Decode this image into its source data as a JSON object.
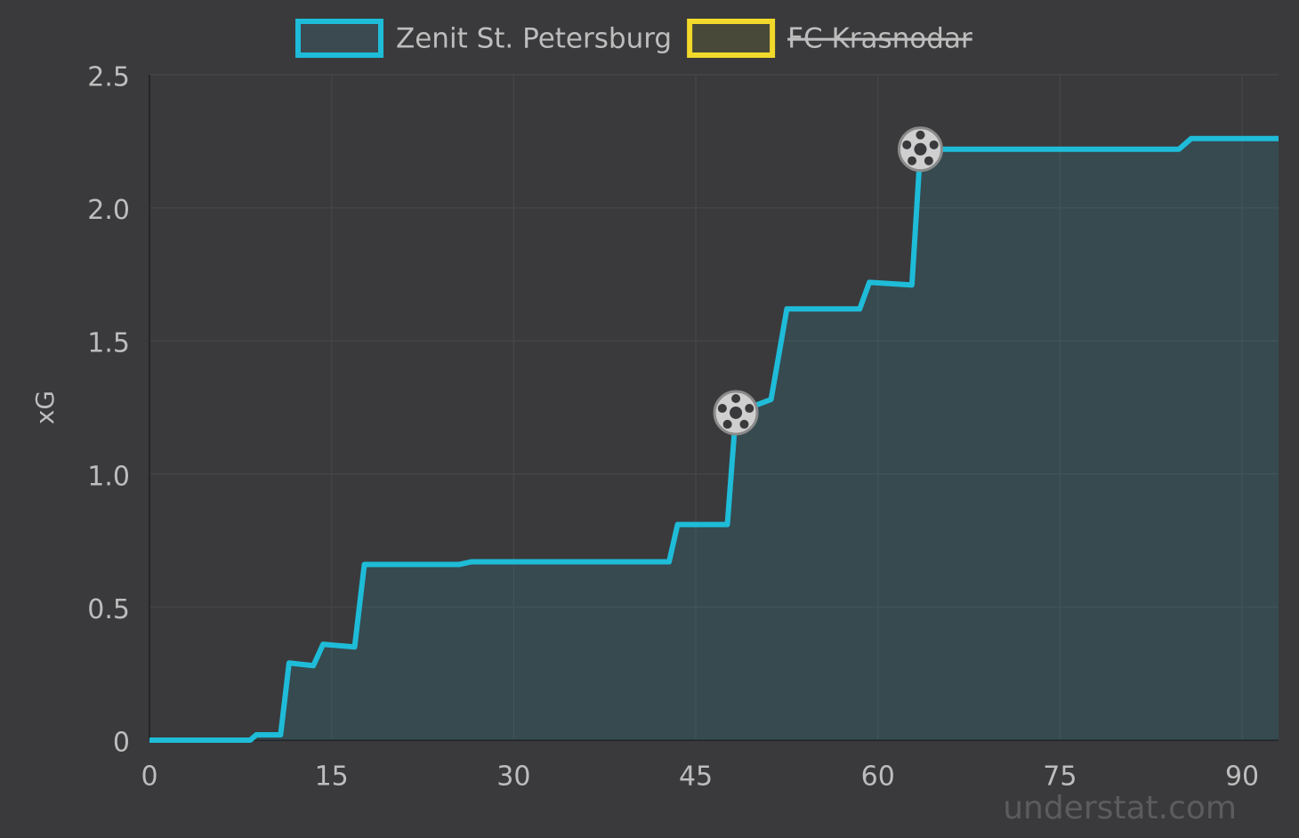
{
  "chart_data": {
    "type": "line",
    "y_label": "xG",
    "watermark": "understat.com",
    "x": [
      0,
      8.3,
      8.8,
      10.8,
      11.5,
      13.5,
      14.3,
      16.9,
      17.7,
      25.5,
      26.5,
      42.8,
      43.5,
      47.6,
      48.3,
      51.2,
      52.5,
      58.5,
      59.3,
      62.8,
      63.5,
      84.8,
      85.8,
      93
    ],
    "series": [
      {
        "name": "Zenit St. Petersburg",
        "color": "#1ebcd8",
        "visible": true,
        "values": [
          0,
          0,
          0.02,
          0.02,
          0.29,
          0.28,
          0.36,
          0.35,
          0.66,
          0.66,
          0.67,
          0.67,
          0.81,
          0.81,
          1.23,
          1.28,
          1.62,
          1.62,
          1.72,
          1.71,
          2.22,
          2.22,
          2.26,
          2.26
        ],
        "goals": [
          48.3,
          63.5
        ]
      },
      {
        "name": "FC Krasnodar",
        "color": "#f2d92a",
        "visible": false
      }
    ],
    "xlim": [
      0,
      93
    ],
    "xticks": [
      0,
      15,
      30,
      45,
      60,
      75,
      90
    ],
    "ylim": [
      0,
      2.5
    ],
    "yticks": [
      0,
      0.5,
      {
        "value": 1,
        "label": "1.0"
      },
      1.5,
      {
        "value": 2,
        "label": "2.0"
      },
      2.5
    ],
    "grid": true
  }
}
